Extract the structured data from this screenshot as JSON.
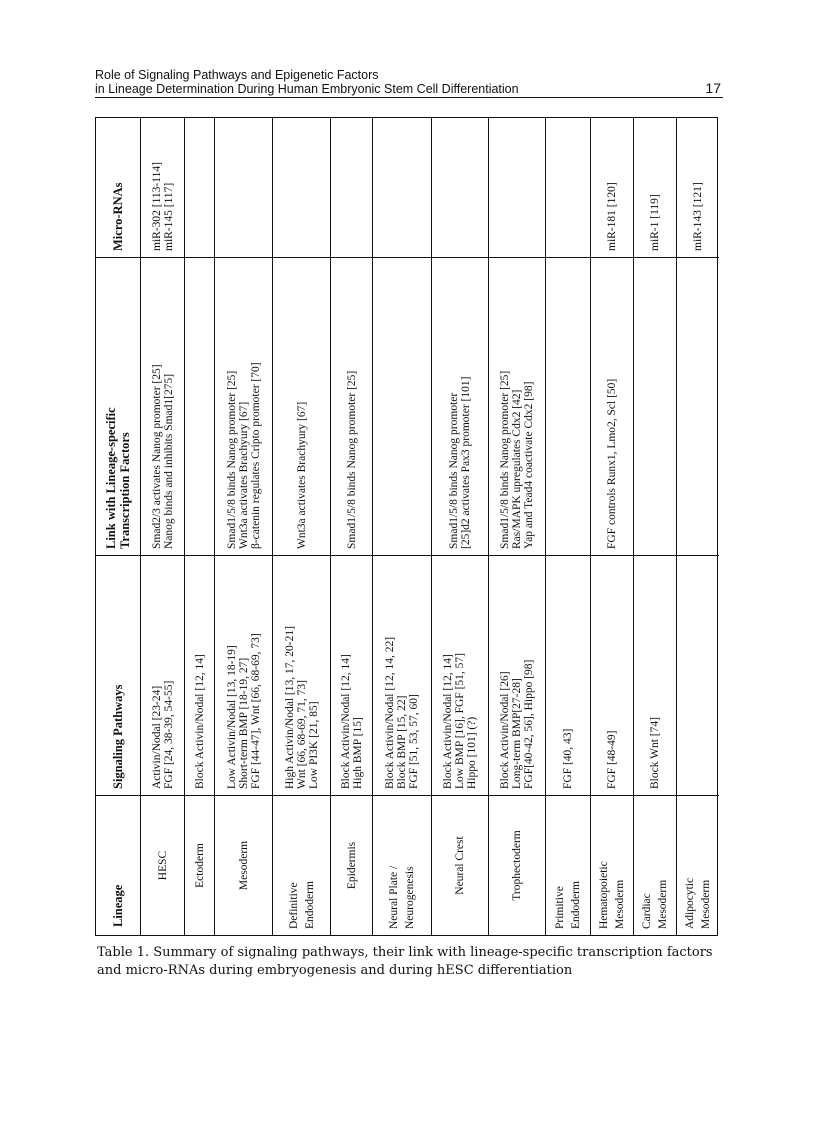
{
  "running_header": {
    "line1": "Role of Signaling Pathways and Epigenetic Factors",
    "line2": "in Lineage Determination During Human Embryonic Stem Cell Differentiation",
    "page_number": "17"
  },
  "table": {
    "headers": [
      "Lineage",
      "Signaling Pathways",
      "Link with Lineage-specific Transcription Factors",
      "Micro-RNAs"
    ],
    "rows": [
      {
        "lineage": [
          "HESC"
        ],
        "signaling": [
          "Activin/Nodal [23-24]",
          "FGF [24, 38-39, 54-55]"
        ],
        "link": [
          "Smad2/3 activates Nanog promoter [25]",
          "Nanog binds and inhibits Smad1[275]"
        ],
        "mirna": [
          "miR-302 [113-114]",
          "miR-145 [117]"
        ]
      },
      {
        "lineage": [
          "Ectoderm"
        ],
        "signaling": [
          "Block Activin/Nodal [12, 14]"
        ],
        "link": [],
        "mirna": []
      },
      {
        "lineage": [
          "Mesoderm"
        ],
        "signaling": [
          "Low Activin/Nodal [13, 18-19]",
          "Short-term BMP [18-19, 27]",
          "FGF [44-47], Wnt [66, 68-69, 73]"
        ],
        "link": [
          "Smad1/5/8 binds  Nanog promoter [25]",
          "Wnt3a activates Brachyury [67]",
          "β-catenin regulates Cripto promoter [70]"
        ],
        "mirna": []
      },
      {
        "lineage": [
          "Definitive",
          "Endoderm"
        ],
        "signaling": [
          "High Activin/Nodal [13, 17, 20-21]",
          "Wnt [66, 68-69, 71, 73]",
          "Low PI3K [21, 85]"
        ],
        "link": [
          "Wnt3a activates Brachyury [67]"
        ],
        "mirna": []
      },
      {
        "lineage": [
          "Epidermis"
        ],
        "signaling": [
          "Block Activin/Nodal [12, 14]",
          "High BMP [15]"
        ],
        "link": [
          "Smad1/5/8 binds  Nanog promoter [25]"
        ],
        "mirna": []
      },
      {
        "lineage": [
          "Neural Plate /",
          "Neurogenesis"
        ],
        "signaling": [
          "Block Activin/Nodal [12, 14, 22]",
          "Block BMP [15, 22]",
          "FGF [51, 53, 57, 60]"
        ],
        "link": [],
        "mirna": []
      },
      {
        "lineage": [
          "Neural Crest"
        ],
        "signaling": [
          "Block Activin/Nodal [12, 14]",
          "Low BMP [16], FGF [51, 57]",
          "Hippo [101] (?)"
        ],
        "link": [
          "Smad1/5/8 binds Nanog promoter",
          "[25]d2 activates Pax3 promoter [101]"
        ],
        "mirna": []
      },
      {
        "lineage": [
          "Trophectoderm"
        ],
        "signaling": [
          "Block Activin/Nodal [26]",
          "Long-term BMP[27-28]",
          "FGF[40-42, 56], Hippo [98]"
        ],
        "link": [
          "Smad1/5/8 binds  Nanog promoter [25]",
          "Ras/MAPK upregulates Cdx2 [42]",
          "Yap and Tead4 coactivate Cdx2 [98]"
        ],
        "mirna": []
      },
      {
        "lineage": [
          "Primitive",
          "Endoderm"
        ],
        "signaling": [
          "FGF [40, 43]"
        ],
        "link": [],
        "mirna": []
      },
      {
        "lineage": [
          "Hematopoietic",
          "Mesoderm"
        ],
        "signaling": [
          "FGF [48-49]"
        ],
        "link": [
          "FGF controls Runx1, Lmo2, Scl [50]"
        ],
        "mirna": [
          "miR-181 [120]"
        ]
      },
      {
        "lineage": [
          "Cardiac",
          "Mesoderm"
        ],
        "signaling": [
          "Block Wnt [74]"
        ],
        "link": [],
        "mirna": [
          "miR-1 [119]"
        ]
      },
      {
        "lineage": [
          "Adipocytic",
          "Mesoderm"
        ],
        "signaling": [],
        "link": [],
        "mirna": [
          "miR-143 [121]"
        ]
      }
    ]
  },
  "caption": "Table 1. Summary of signaling pathways, their link with lineage-specific transcription factors and micro-RNAs during embryogenesis and during hESC differentiation"
}
